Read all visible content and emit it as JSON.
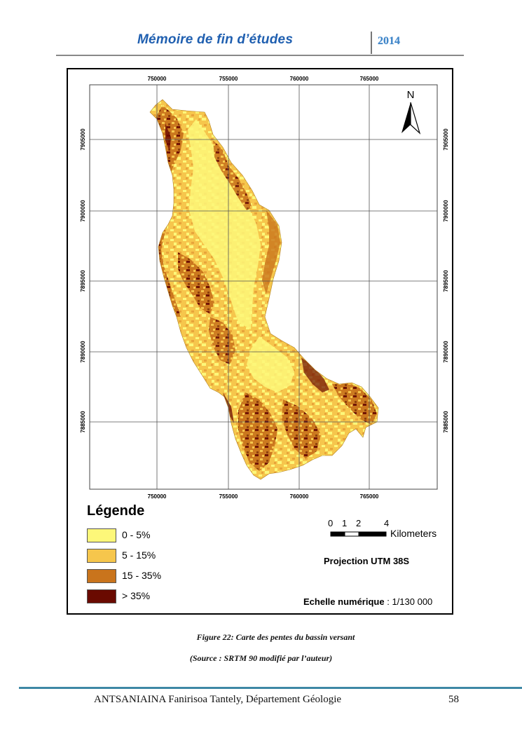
{
  "header": {
    "title": "Mémoire de fin d’études",
    "year": "2014"
  },
  "map": {
    "grid": {
      "x_labels": [
        "750000",
        "755000",
        "760000",
        "765000"
      ],
      "y_labels": [
        "7905000",
        "7900000",
        "7895000",
        "7890000",
        "7885000"
      ]
    },
    "north_label": "N",
    "legend": {
      "title": "Légende",
      "items": [
        {
          "label": "0 - 5%",
          "color": "#fdf779"
        },
        {
          "label": "5 - 15%",
          "color": "#f6c64c"
        },
        {
          "label": "15 - 35%",
          "color": "#c9741c"
        },
        {
          "label": "> 35%",
          "color": "#6a0a00"
        }
      ]
    },
    "scale_bar": {
      "ticks": [
        "0",
        "1",
        "2",
        "4"
      ],
      "unit": "Kilometers"
    },
    "projection": "Projection UTM 38S",
    "scale_ratio_label": "Echelle numérique",
    "scale_ratio_value": ": 1/130 000"
  },
  "caption": {
    "figure": "Figure 22: Carte des pentes du bassin versant",
    "source": "(Source : SRTM 90 modifié par l’auteur)"
  },
  "footer": {
    "author": "ANTSANIAINA Fanirisoa Tantely, Département Géologie",
    "page": "58"
  }
}
